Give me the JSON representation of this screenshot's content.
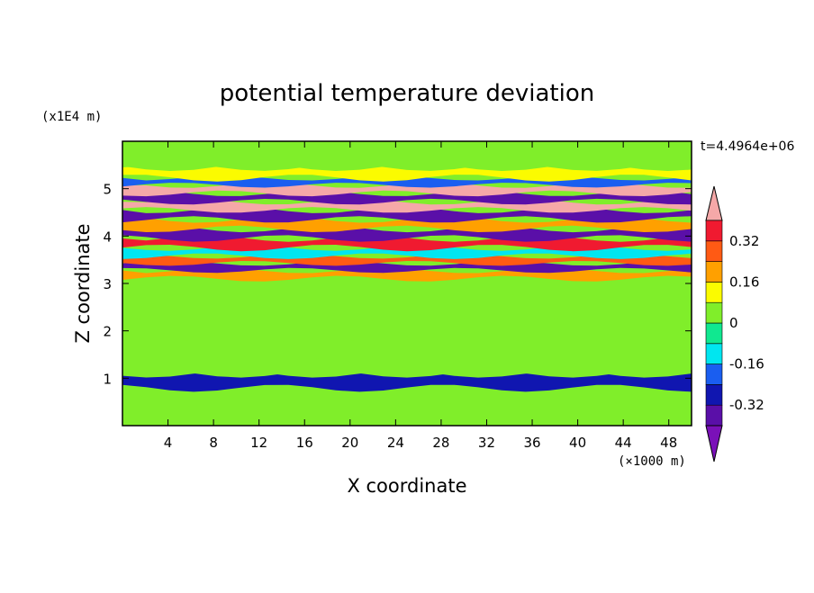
{
  "chart_data": {
    "type": "heatmap",
    "title": "potential temperature deviation",
    "xlabel": "X coordinate",
    "ylabel": "Z coordinate",
    "x_unit": "(×1000 m)",
    "y_unit": "(x1E4 m)",
    "time_label": "t=4.4964e+06",
    "xlim": [
      0,
      50
    ],
    "ylim": [
      0,
      6
    ],
    "x_ticks": [
      4,
      8,
      12,
      16,
      20,
      24,
      28,
      32,
      36,
      40,
      44,
      48
    ],
    "y_ticks": [
      1,
      2,
      3,
      4,
      5
    ],
    "color_levels": [
      -0.4,
      -0.32,
      -0.24,
      -0.16,
      -0.08,
      0,
      0.08,
      0.16,
      0.24,
      0.32,
      0.4
    ],
    "colorbar_ticks": [
      0.32,
      0.16,
      0,
      -0.16,
      -0.32
    ],
    "colors": {
      "below_min": "#7a10b8",
      "levels": [
        "#5a0fa8",
        "#1016b0",
        "#1a5ef0",
        "#00e6f0",
        "#10e890",
        "#80ee2a",
        "#fbfb00",
        "#ffa000",
        "#ff5a14",
        "#f01a30"
      ],
      "above_max": "#f5a8a8"
    },
    "bands": [
      {
        "z": 0.3,
        "value": 0.02
      },
      {
        "z": 0.6,
        "value": 0.04
      },
      {
        "z": 0.98,
        "value": -0.3
      },
      {
        "z": 1.2,
        "value": 0.05
      },
      {
        "z": 1.6,
        "value": 0.03
      },
      {
        "z": 2.0,
        "value": 0.05
      },
      {
        "z": 2.5,
        "value": 0.02
      },
      {
        "z": 3.0,
        "value": 0.04
      },
      {
        "z": 3.2,
        "value": 0.18
      },
      {
        "z": 3.35,
        "value": -0.36
      },
      {
        "z": 3.5,
        "value": 0.3
      },
      {
        "z": 3.65,
        "value": -0.1
      },
      {
        "z": 3.85,
        "value": 0.36
      },
      {
        "z": 4.05,
        "value": -0.36
      },
      {
        "z": 4.25,
        "value": 0.2
      },
      {
        "z": 4.45,
        "value": -0.36
      },
      {
        "z": 4.65,
        "value": 0.42
      },
      {
        "z": 4.8,
        "value": -0.36
      },
      {
        "z": 5.0,
        "value": 0.42
      },
      {
        "z": 5.15,
        "value": -0.2
      },
      {
        "z": 5.3,
        "value": 0.1
      },
      {
        "z": 5.6,
        "value": 0.02
      }
    ]
  }
}
